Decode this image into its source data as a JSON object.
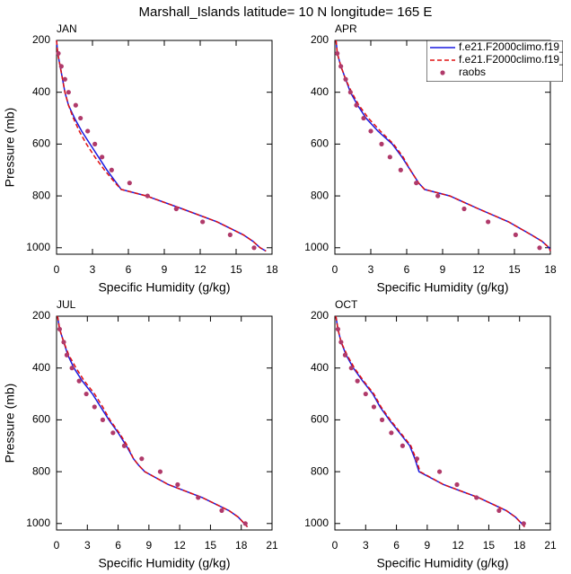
{
  "title": "Marshall_Islands  latitude= 10 N longitude= 165 E",
  "chart_data": [
    {
      "type": "line",
      "title": "JAN",
      "xlabel": "Specific Humidity (g/kg)",
      "ylabel": "Pressure (mb)",
      "xlim": [
        0,
        18
      ],
      "xticks": [
        0,
        3,
        6,
        9,
        12,
        15,
        18
      ],
      "ylim": [
        200,
        1025
      ],
      "yticks": [
        200,
        400,
        600,
        800,
        1000
      ],
      "yreverse": true,
      "series": [
        {
          "color": "#1a1ae0",
          "style": "solid",
          "y": [
            200,
            250,
            300,
            350,
            400,
            450,
            500,
            550,
            600,
            650,
            700,
            750,
            775,
            800,
            850,
            900,
            950,
            975,
            1000,
            1013
          ],
          "values": [
            0,
            0.1,
            0.3,
            0.5,
            0.7,
            1.0,
            1.5,
            2.1,
            2.8,
            3.5,
            4.2,
            5.0,
            5.4,
            7.5,
            10.5,
            13.4,
            15.6,
            16.4,
            17.0,
            17.5
          ]
        },
        {
          "color": "#e01010",
          "style": "dashed",
          "y": [
            200,
            250,
            300,
            350,
            400,
            450,
            500,
            550,
            600,
            650,
            700,
            750,
            775,
            800,
            850,
            900,
            950,
            975,
            1000,
            1013
          ],
          "values": [
            0,
            0.1,
            0.3,
            0.5,
            0.7,
            1.0,
            1.4,
            1.9,
            2.5,
            3.2,
            4.0,
            4.9,
            5.4,
            7.5,
            10.5,
            13.4,
            15.6,
            16.4,
            17.0,
            17.5
          ]
        },
        {
          "color": "#b03a6a",
          "style": "markers",
          "y": [
            250,
            300,
            350,
            400,
            450,
            500,
            550,
            600,
            650,
            700,
            750,
            800,
            850,
            900,
            950,
            1000
          ],
          "values": [
            0.15,
            0.4,
            0.7,
            1.0,
            1.6,
            2.0,
            2.6,
            3.2,
            3.8,
            4.6,
            6.1,
            7.6,
            10.0,
            12.2,
            14.5,
            16.5
          ]
        }
      ]
    },
    {
      "type": "line",
      "title": "APR",
      "xlabel": "Specific Humidity (g/kg)",
      "xlim": [
        0,
        18
      ],
      "xticks": [
        0,
        3,
        6,
        9,
        12,
        15,
        18
      ],
      "ylim": [
        200,
        1025
      ],
      "yticks": [
        200,
        400,
        600,
        800,
        1000
      ],
      "yreverse": true,
      "legend": "upper right",
      "series": [
        {
          "name": "f.e21.F2000climo.f19_",
          "color": "#1a1ae0",
          "style": "solid",
          "y": [
            200,
            250,
            300,
            350,
            400,
            450,
            500,
            550,
            600,
            650,
            700,
            750,
            775,
            800,
            850,
            900,
            950,
            975,
            1000,
            1013
          ],
          "values": [
            0.1,
            0.2,
            0.5,
            0.9,
            1.3,
            1.9,
            2.6,
            3.6,
            4.8,
            5.6,
            6.3,
            7.0,
            7.5,
            9.6,
            12.0,
            14.5,
            16.4,
            17.3,
            17.9,
            18.0
          ]
        },
        {
          "name": "f.e21.F2000climo.f19_",
          "color": "#e01010",
          "style": "dashed",
          "y": [
            200,
            250,
            300,
            350,
            400,
            450,
            500,
            550,
            600,
            650,
            700,
            750,
            775,
            800,
            850,
            900,
            950,
            975,
            1000,
            1013
          ],
          "values": [
            0.1,
            0.2,
            0.5,
            0.9,
            1.4,
            2.0,
            2.8,
            3.8,
            4.9,
            5.7,
            6.3,
            7.0,
            7.5,
            9.6,
            12.0,
            14.5,
            16.4,
            17.3,
            17.9,
            18.0
          ]
        },
        {
          "name": "raobs",
          "color": "#b03a6a",
          "style": "markers",
          "y": [
            250,
            300,
            350,
            400,
            450,
            500,
            550,
            600,
            650,
            700,
            750,
            800,
            850,
            900,
            950,
            1000
          ],
          "values": [
            0.2,
            0.5,
            0.9,
            1.3,
            1.8,
            2.4,
            3.0,
            3.9,
            4.6,
            5.5,
            6.8,
            8.6,
            10.8,
            12.8,
            15.1,
            17.1
          ]
        }
      ]
    },
    {
      "type": "line",
      "title": "JUL",
      "xlabel": "Specific Humidity (g/kg)",
      "ylabel": "Pressure (mb)",
      "xlim": [
        0,
        21
      ],
      "xticks": [
        0,
        3,
        6,
        9,
        12,
        15,
        18,
        21
      ],
      "ylim": [
        200,
        1025
      ],
      "yticks": [
        200,
        400,
        600,
        800,
        1000
      ],
      "yreverse": true,
      "series": [
        {
          "color": "#1a1ae0",
          "style": "solid",
          "y": [
            200,
            250,
            300,
            350,
            400,
            450,
            500,
            550,
            600,
            650,
            700,
            750,
            775,
            800,
            850,
            900,
            950,
            975,
            1000,
            1013
          ],
          "values": [
            0.1,
            0.3,
            0.7,
            1.1,
            1.7,
            2.5,
            3.5,
            4.3,
            5.1,
            6.0,
            6.8,
            7.5,
            8.0,
            8.6,
            10.9,
            14.2,
            16.8,
            17.7,
            18.3,
            18.6
          ]
        },
        {
          "color": "#e01010",
          "style": "dashed",
          "y": [
            200,
            250,
            300,
            350,
            400,
            450,
            500,
            550,
            600,
            650,
            700,
            750,
            775,
            800,
            850,
            900,
            950,
            975,
            1000,
            1013
          ],
          "values": [
            0.1,
            0.3,
            0.7,
            1.2,
            1.9,
            2.7,
            3.7,
            4.5,
            5.2,
            6.1,
            6.9,
            7.5,
            8.0,
            8.6,
            10.9,
            14.2,
            16.8,
            17.7,
            18.3,
            18.6
          ]
        },
        {
          "color": "#b03a6a",
          "style": "markers",
          "y": [
            250,
            300,
            350,
            400,
            450,
            500,
            550,
            600,
            650,
            700,
            750,
            800,
            850,
            900,
            950,
            1000
          ],
          "values": [
            0.3,
            0.7,
            1.0,
            1.5,
            2.2,
            2.9,
            3.7,
            4.5,
            5.5,
            6.6,
            8.3,
            10.1,
            11.8,
            13.8,
            16.1,
            18.4
          ]
        }
      ]
    },
    {
      "type": "line",
      "title": "OCT",
      "xlabel": "Specific Humidity (g/kg)",
      "xlim": [
        0,
        21
      ],
      "xticks": [
        0,
        3,
        6,
        9,
        12,
        15,
        18,
        21
      ],
      "ylim": [
        200,
        1025
      ],
      "yticks": [
        200,
        400,
        600,
        800,
        1000
      ],
      "yreverse": true,
      "series": [
        {
          "color": "#1a1ae0",
          "style": "solid",
          "y": [
            200,
            250,
            300,
            350,
            400,
            450,
            500,
            550,
            600,
            650,
            700,
            750,
            775,
            800,
            850,
            900,
            950,
            975,
            1000,
            1013
          ],
          "values": [
            0.1,
            0.3,
            0.6,
            1.1,
            1.8,
            2.7,
            3.7,
            4.4,
            5.3,
            6.3,
            7.3,
            7.8,
            8.0,
            8.2,
            10.6,
            14.0,
            16.7,
            17.6,
            18.2,
            18.5
          ]
        },
        {
          "color": "#e01010",
          "style": "dashed",
          "y": [
            200,
            250,
            300,
            350,
            400,
            450,
            500,
            550,
            600,
            650,
            700,
            750,
            775,
            800,
            850,
            900,
            950,
            975,
            1000,
            1013
          ],
          "values": [
            0.1,
            0.3,
            0.6,
            1.2,
            1.9,
            2.8,
            3.8,
            4.5,
            5.4,
            6.4,
            7.4,
            7.9,
            8.1,
            8.3,
            10.6,
            14.0,
            16.7,
            17.6,
            18.2,
            18.5
          ]
        },
        {
          "color": "#b03a6a",
          "style": "markers",
          "y": [
            250,
            300,
            350,
            400,
            450,
            500,
            550,
            600,
            650,
            700,
            750,
            800,
            850,
            900,
            950,
            1000
          ],
          "values": [
            0.3,
            0.6,
            1.0,
            1.6,
            2.2,
            3.0,
            3.8,
            4.6,
            5.5,
            6.6,
            8.0,
            10.2,
            11.9,
            13.8,
            16.0,
            18.4
          ]
        }
      ]
    }
  ]
}
